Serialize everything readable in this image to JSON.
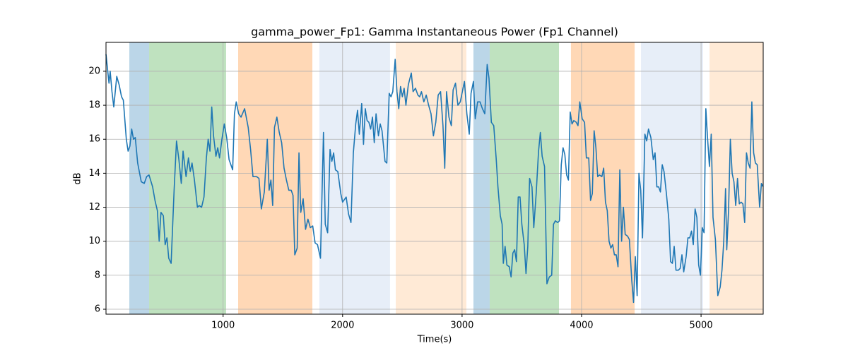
{
  "chart_data": {
    "type": "line",
    "title": "gamma_power_Fp1: Gamma Instantaneous Power (Fp1 Channel)",
    "x_label": "Time(s)",
    "y_label": "dB",
    "xlim": [
      20,
      5520
    ],
    "ylim": [
      5.71,
      21.7
    ],
    "xticks": [
      1000,
      2000,
      3000,
      4000,
      5000
    ],
    "yticks": [
      6,
      8,
      10,
      12,
      14,
      16,
      18,
      20
    ],
    "grid": true,
    "color": "#1f77b4",
    "spans": [
      {
        "start": 215,
        "end": 381,
        "color": "#1f77b4",
        "alpha": 0.3
      },
      {
        "start": 381,
        "end": 1025,
        "color": "#2ca02c",
        "alpha": 0.3
      },
      {
        "start": 1126,
        "end": 1747,
        "color": "#ff7f0e",
        "alpha": 0.3
      },
      {
        "start": 1806,
        "end": 2397,
        "color": "#aec7e8",
        "alpha": 0.3
      },
      {
        "start": 2445,
        "end": 3036,
        "color": "#ffbb78",
        "alpha": 0.3
      },
      {
        "start": 3095,
        "end": 3231,
        "color": "#1f77b4",
        "alpha": 0.3
      },
      {
        "start": 3231,
        "end": 3811,
        "color": "#2ca02c",
        "alpha": 0.3
      },
      {
        "start": 3911,
        "end": 4444,
        "color": "#ff7f0e",
        "alpha": 0.3
      },
      {
        "start": 4497,
        "end": 5017,
        "color": "#aec7e8",
        "alpha": 0.3
      },
      {
        "start": 5071,
        "end": 5520,
        "color": "#ffbb78",
        "alpha": 0.3
      }
    ],
    "x": [
      20,
      45,
      55,
      70,
      85,
      110,
      130,
      150,
      165,
      190,
      205,
      220,
      235,
      250,
      265,
      285,
      315,
      340,
      360,
      380,
      410,
      430,
      450,
      465,
      480,
      500,
      515,
      530,
      545,
      565,
      590,
      610,
      630,
      650,
      665,
      690,
      710,
      725,
      740,
      760,
      785,
      800,
      820,
      840,
      860,
      875,
      890,
      905,
      920,
      940,
      955,
      970,
      990,
      1010,
      1030,
      1050,
      1080,
      1095,
      1110,
      1130,
      1150,
      1180,
      1210,
      1230,
      1250,
      1280,
      1300,
      1320,
      1345,
      1370,
      1385,
      1400,
      1415,
      1430,
      1450,
      1470,
      1490,
      1510,
      1530,
      1550,
      1570,
      1585,
      1600,
      1620,
      1635,
      1650,
      1670,
      1690,
      1710,
      1730,
      1750,
      1770,
      1790,
      1815,
      1840,
      1855,
      1875,
      1895,
      1910,
      1925,
      1940,
      1960,
      1985,
      2000,
      2030,
      2050,
      2070,
      2090,
      2110,
      2125,
      2140,
      2160,
      2175,
      2190,
      2205,
      2220,
      2235,
      2250,
      2265,
      2280,
      2300,
      2315,
      2330,
      2355,
      2370,
      2390,
      2405,
      2420,
      2440,
      2455,
      2470,
      2485,
      2500,
      2515,
      2530,
      2550,
      2575,
      2590,
      2610,
      2630,
      2645,
      2660,
      2680,
      2700,
      2720,
      2740,
      2760,
      2780,
      2800,
      2820,
      2840,
      2855,
      2870,
      2890,
      2910,
      2925,
      2945,
      2965,
      2985,
      3005,
      3020,
      3040,
      3060,
      3075,
      3095,
      3110,
      3130,
      3150,
      3170,
      3190,
      3210,
      3225,
      3245,
      3265,
      3285,
      3300,
      3320,
      3335,
      3345,
      3360,
      3375,
      3395,
      3410,
      3425,
      3440,
      3455,
      3470,
      3485,
      3500,
      3520,
      3535,
      3550,
      3565,
      3585,
      3600,
      3620,
      3640,
      3655,
      3670,
      3690,
      3710,
      3730,
      3750,
      3765,
      3780,
      3800,
      3815,
      3830,
      3845,
      3860,
      3875,
      3890,
      3905,
      3920,
      3935,
      3955,
      3970,
      3985,
      4005,
      4025,
      4040,
      4060,
      4075,
      4090,
      4105,
      4120,
      4135,
      4150,
      4170,
      4185,
      4200,
      4215,
      4230,
      4245,
      4260,
      4275,
      4290,
      4305,
      4320,
      4335,
      4350,
      4365,
      4385,
      4400,
      4420,
      4435,
      4450,
      4465,
      4480,
      4495,
      4510,
      4530,
      4545,
      4560,
      4580,
      4600,
      4615,
      4630,
      4645,
      4660,
      4675,
      4690,
      4710,
      4730,
      4745,
      4760,
      4775,
      4790,
      4810,
      4825,
      4840,
      4855,
      4875,
      4890,
      4905,
      4920,
      4935,
      4950,
      4965,
      4980,
      4995,
      5010,
      5025,
      5040,
      5055,
      5070,
      5085,
      5100,
      5120,
      5140,
      5160,
      5175,
      5190,
      5205,
      5215,
      5230,
      5245,
      5260,
      5275,
      5290,
      5305,
      5320,
      5335,
      5350,
      5365,
      5380,
      5395,
      5410,
      5425,
      5440,
      5455,
      5470,
      5490,
      5505,
      5520
    ],
    "values": [
      21.0,
      19.3,
      20.0,
      18.8,
      17.9,
      19.7,
      19.2,
      18.5,
      18.3,
      16.0,
      15.3,
      15.6,
      16.6,
      16.0,
      16.1,
      14.6,
      13.5,
      13.4,
      13.8,
      13.9,
      13.2,
      12.4,
      11.8,
      10.0,
      11.7,
      11.5,
      9.8,
      10.2,
      9.0,
      8.7,
      13.0,
      15.9,
      14.8,
      13.4,
      15.3,
      13.8,
      14.9,
      14.1,
      14.6,
      13.6,
      12.0,
      12.1,
      12.0,
      12.6,
      14.9,
      16.0,
      15.3,
      17.9,
      16.2,
      15.0,
      15.5,
      14.9,
      16.0,
      16.9,
      16.1,
      14.8,
      14.2,
      17.5,
      18.2,
      17.5,
      17.3,
      17.8,
      16.7,
      15.4,
      13.8,
      13.8,
      13.7,
      11.9,
      12.9,
      16.0,
      13.0,
      13.6,
      12.1,
      16.7,
      17.3,
      16.4,
      15.8,
      14.3,
      13.6,
      13.0,
      13.0,
      12.7,
      9.2,
      9.6,
      15.2,
      11.7,
      12.5,
      10.7,
      11.3,
      10.8,
      10.9,
      9.9,
      9.8,
      9.0,
      16.4,
      11.0,
      10.5,
      15.4,
      14.7,
      15.2,
      14.2,
      14.1,
      12.8,
      12.3,
      12.6,
      11.6,
      11.1,
      15.2,
      16.9,
      17.7,
      16.3,
      18.1,
      15.7,
      17.8,
      17.1,
      17.0,
      16.6,
      17.3,
      15.8,
      17.5,
      16.2,
      16.9,
      16.5,
      14.7,
      14.6,
      18.7,
      18.5,
      18.8,
      20.7,
      18.8,
      17.8,
      19.1,
      18.5,
      19.0,
      18.0,
      19.2,
      19.9,
      18.8,
      19.0,
      18.6,
      18.5,
      18.8,
      18.2,
      18.6,
      18.0,
      17.5,
      16.2,
      17.0,
      18.6,
      18.8,
      16.8,
      14.3,
      18.8,
      17.3,
      16.8,
      18.9,
      19.3,
      18.0,
      18.2,
      18.9,
      19.4,
      17.5,
      16.3,
      18.7,
      19.4,
      17.2,
      18.2,
      18.2,
      17.8,
      17.5,
      20.4,
      19.6,
      17.0,
      16.8,
      14.9,
      13.2,
      11.5,
      11.0,
      8.7,
      9.7,
      8.6,
      8.5,
      7.9,
      9.3,
      9.5,
      8.8,
      12.6,
      12.6,
      11.0,
      9.8,
      8.1,
      9.7,
      13.7,
      13.2,
      10.8,
      12.8,
      15.3,
      16.4,
      15.0,
      14.4,
      7.5,
      7.9,
      8.0,
      11.0,
      11.2,
      11.1,
      11.2,
      14.5,
      15.5,
      15.1,
      13.9,
      13.6,
      17.6,
      16.9,
      17.1,
      17.0,
      16.8,
      18.2,
      17.2,
      17.0,
      14.9,
      14.9,
      12.4,
      12.8,
      16.5,
      15.5,
      13.8,
      13.9,
      13.8,
      14.3,
      12.3,
      11.8,
      10.0,
      9.6,
      9.8,
      9.2,
      9.2,
      8.5,
      14.2,
      10.0,
      12.0,
      10.4,
      10.3,
      10.1,
      7.7,
      6.4,
      9.1,
      6.8,
      14.0,
      13.0,
      10.2,
      16.3,
      15.9,
      16.6,
      16.1,
      14.8,
      15.2,
      13.2,
      13.2,
      12.9,
      14.5,
      14.1,
      12.8,
      11.3,
      8.8,
      8.7,
      9.7,
      8.3,
      8.3,
      8.4,
      9.2,
      8.2,
      9.1,
      10.2,
      10.2,
      10.6,
      9.8,
      11.9,
      11.4,
      8.6,
      8.0,
      10.8,
      10.5,
      17.8,
      16.0,
      14.4,
      16.3,
      11.4,
      10.1,
      6.8,
      7.3,
      8.3,
      10.0,
      13.1,
      9.5,
      11.8,
      16.0,
      14.0,
      13.5,
      12.1,
      13.7,
      12.2,
      12.3,
      12.2,
      11.1,
      15.2,
      14.6,
      14.3,
      18.2,
      15.2,
      14.6,
      14.5,
      12.0,
      13.4,
      13.2
    ]
  }
}
